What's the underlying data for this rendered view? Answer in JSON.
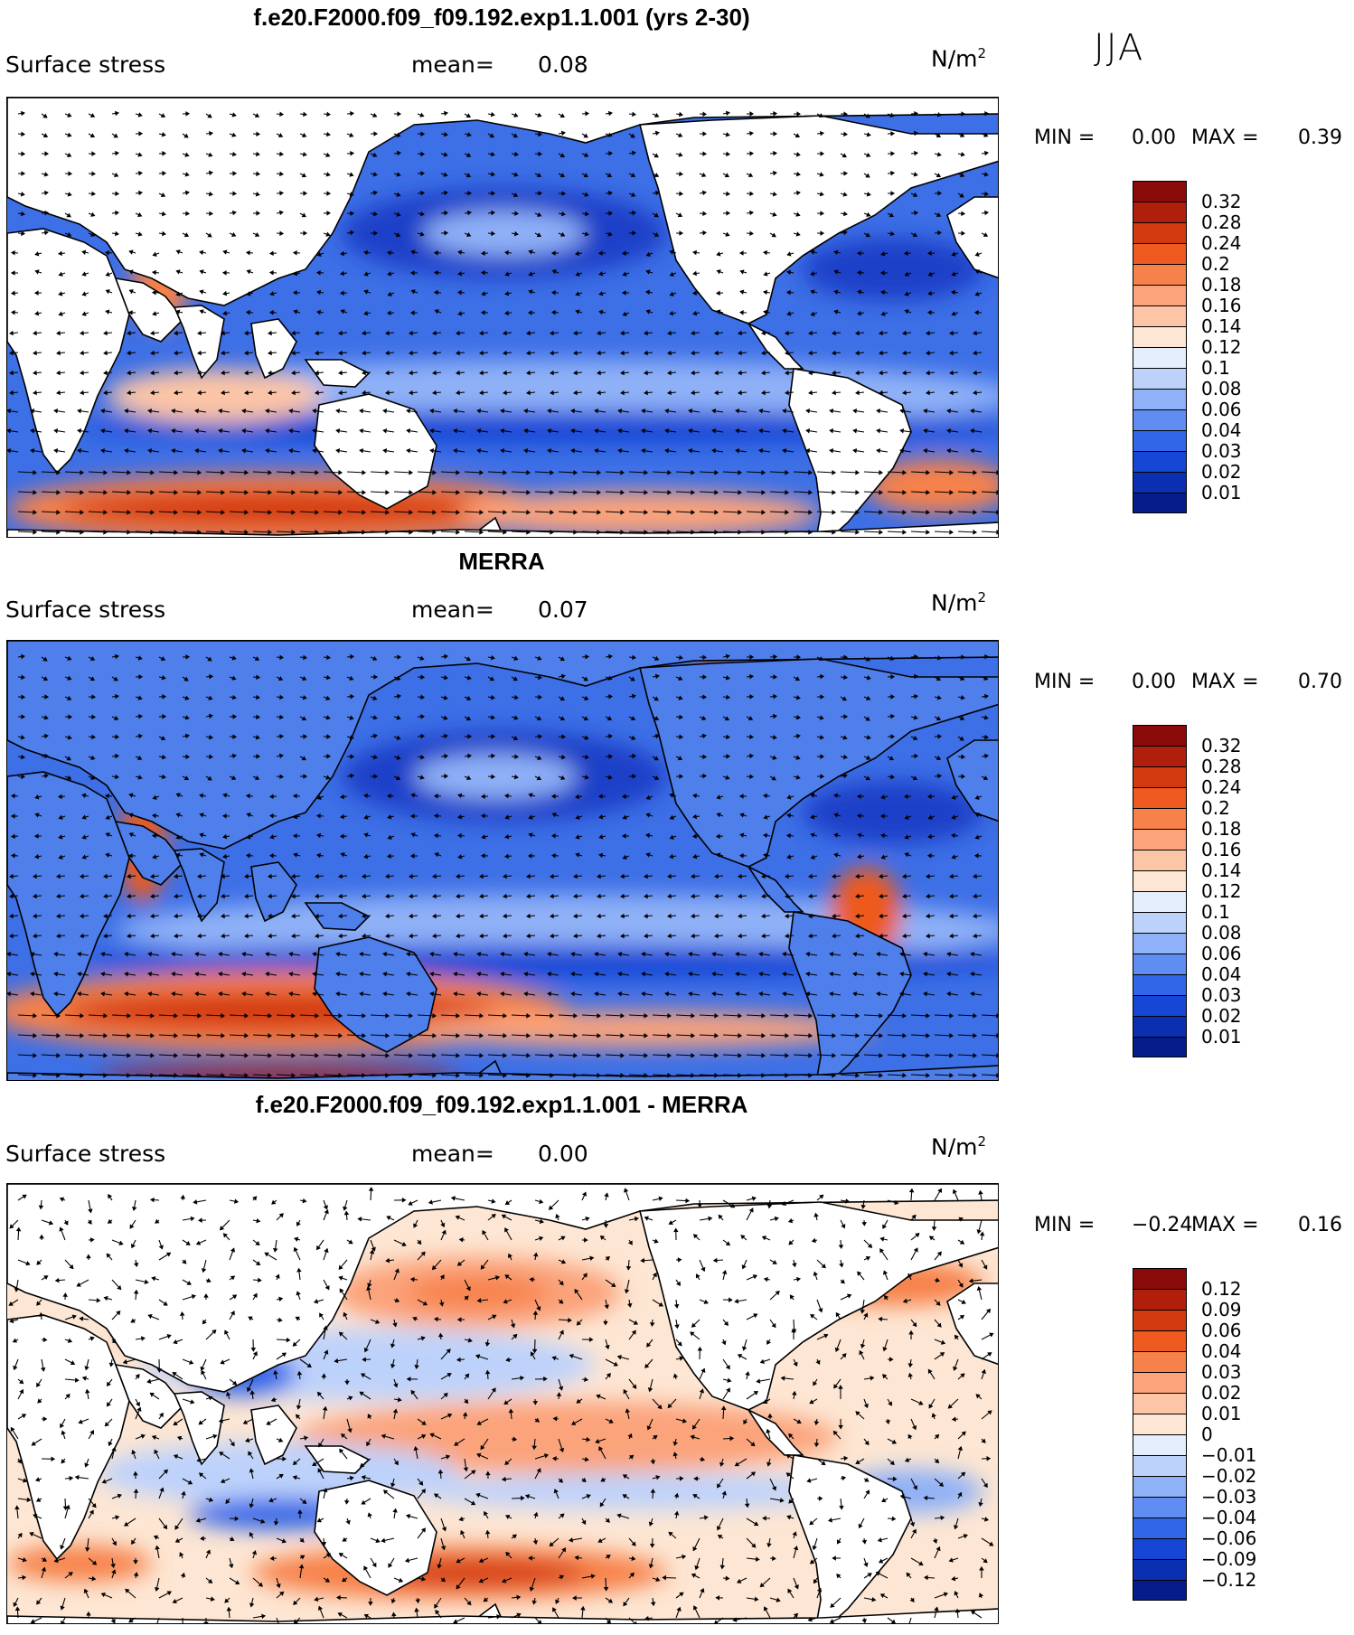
{
  "season": "JJA",
  "units": "N/m²",
  "panels": [
    {
      "id": "model",
      "title": "f.e20.F2000.f09_f09.192.exp1.1.001 (yrs 2-30)",
      "variable": "Surface stress",
      "mean_label": "mean=",
      "mean_value": "0.08",
      "min_label": "MIN =",
      "min_value": "0.00",
      "max_label": "MAX =",
      "max_value": "0.39",
      "colorbar_labels": [
        "0.32",
        "0.28",
        "0.24",
        "0.2",
        "0.18",
        "0.16",
        "0.14",
        "0.12",
        "0.1",
        "0.08",
        "0.06",
        "0.04",
        "0.03",
        "0.02",
        "0.01"
      ],
      "colorbar_colors": [
        "#8b0a0a",
        "#b01e0c",
        "#d43a10",
        "#ee5a1f",
        "#f7814a",
        "#fba37a",
        "#fcc5a6",
        "#fde6d3",
        "#e4eefc",
        "#bdd2fb",
        "#8fb1f7",
        "#5f8df1",
        "#3266e8",
        "#1646d6",
        "#0a2fb0",
        "#061c8a"
      ]
    },
    {
      "id": "merra",
      "title": "MERRA",
      "variable": "Surface stress",
      "mean_label": "mean=",
      "mean_value": "0.07",
      "min_label": "MIN =",
      "min_value": "0.00",
      "max_label": "MAX =",
      "max_value": "0.70",
      "colorbar_labels": [
        "0.32",
        "0.28",
        "0.24",
        "0.2",
        "0.18",
        "0.16",
        "0.14",
        "0.12",
        "0.1",
        "0.08",
        "0.06",
        "0.04",
        "0.03",
        "0.02",
        "0.01"
      ],
      "colorbar_colors": [
        "#8b0a0a",
        "#b01e0c",
        "#d43a10",
        "#ee5a1f",
        "#f7814a",
        "#fba37a",
        "#fcc5a6",
        "#fde6d3",
        "#e4eefc",
        "#bdd2fb",
        "#8fb1f7",
        "#5f8df1",
        "#3266e8",
        "#1646d6",
        "#0a2fb0",
        "#061c8a"
      ]
    },
    {
      "id": "diff",
      "title": "f.e20.F2000.f09_f09.192.exp1.1.001 - MERRA",
      "variable": "Surface stress",
      "mean_label": "mean=",
      "mean_value": "0.00",
      "min_label": "MIN =",
      "min_value": "−0.24",
      "max_label": "MAX =",
      "max_value": "0.16",
      "colorbar_labels": [
        "0.12",
        "0.09",
        "0.06",
        "0.04",
        "0.03",
        "0.02",
        "0.01",
        "0",
        "−0.01",
        "−0.02",
        "−0.03",
        "−0.04",
        "−0.06",
        "−0.09",
        "−0.12"
      ],
      "colorbar_colors": [
        "#8b0a0a",
        "#b01e0c",
        "#d43a10",
        "#ee5a1f",
        "#f7814a",
        "#fba37a",
        "#fcc5a6",
        "#fde6d3",
        "#e4eefc",
        "#bdd2fb",
        "#8fb1f7",
        "#5f8df1",
        "#3266e8",
        "#1646d6",
        "#0a2fb0",
        "#061c8a"
      ]
    }
  ]
}
